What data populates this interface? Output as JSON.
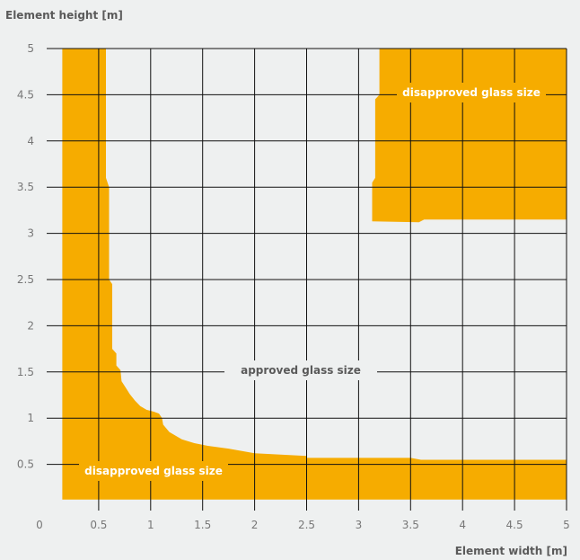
{
  "chart_data": {
    "type": "area",
    "xlabel": "Element width [m]",
    "ylabel": "Element height [m]",
    "xlim": [
      0,
      5
    ],
    "ylim": [
      0,
      5
    ],
    "xticks": [
      "0",
      "0.5",
      "1",
      "1.5",
      "2",
      "2.5",
      "3",
      "3.5",
      "4",
      "4.5",
      "5"
    ],
    "yticks": [
      "0.5",
      "1",
      "1.5",
      "2",
      "2.5",
      "3",
      "3.5",
      "4",
      "4.5",
      "5"
    ],
    "grid": true,
    "fill_color": "#f6ac00",
    "region_lower_left_boundary": [
      [
        0.57,
        5.0
      ],
      [
        0.57,
        3.6
      ],
      [
        0.6,
        3.5
      ],
      [
        0.6,
        2.5
      ],
      [
        0.63,
        2.45
      ],
      [
        0.63,
        1.75
      ],
      [
        0.67,
        1.7
      ],
      [
        0.67,
        1.57
      ],
      [
        0.71,
        1.52
      ],
      [
        0.72,
        1.4
      ],
      [
        0.76,
        1.33
      ],
      [
        0.8,
        1.26
      ],
      [
        0.85,
        1.19
      ],
      [
        0.9,
        1.13
      ],
      [
        0.96,
        1.09
      ],
      [
        1.03,
        1.07
      ],
      [
        1.08,
        1.05
      ],
      [
        1.11,
        1.0
      ],
      [
        1.12,
        0.93
      ],
      [
        1.18,
        0.85
      ],
      [
        1.3,
        0.77
      ],
      [
        1.42,
        0.73
      ],
      [
        1.55,
        0.7
      ],
      [
        1.75,
        0.67
      ],
      [
        2.0,
        0.62
      ],
      [
        2.5,
        0.59
      ],
      [
        2.5,
        0.57
      ],
      [
        3.5,
        0.57
      ],
      [
        3.6,
        0.55
      ],
      [
        5.0,
        0.55
      ]
    ],
    "region_lower_left_extent": {
      "x_min": 0.15,
      "y_min": 0.12
    },
    "region_upper_right_boundary": [
      [
        3.2,
        5.0
      ],
      [
        3.2,
        4.5
      ],
      [
        3.16,
        4.45
      ],
      [
        3.16,
        3.6
      ],
      [
        3.13,
        3.55
      ],
      [
        3.13,
        3.13
      ],
      [
        3.58,
        3.12
      ],
      [
        3.63,
        3.15
      ],
      [
        5.0,
        3.15
      ]
    ],
    "annotations": {
      "lower_left": "disapproved glass size",
      "upper_right": "disapproved glass size",
      "middle": "approved glass size"
    }
  }
}
